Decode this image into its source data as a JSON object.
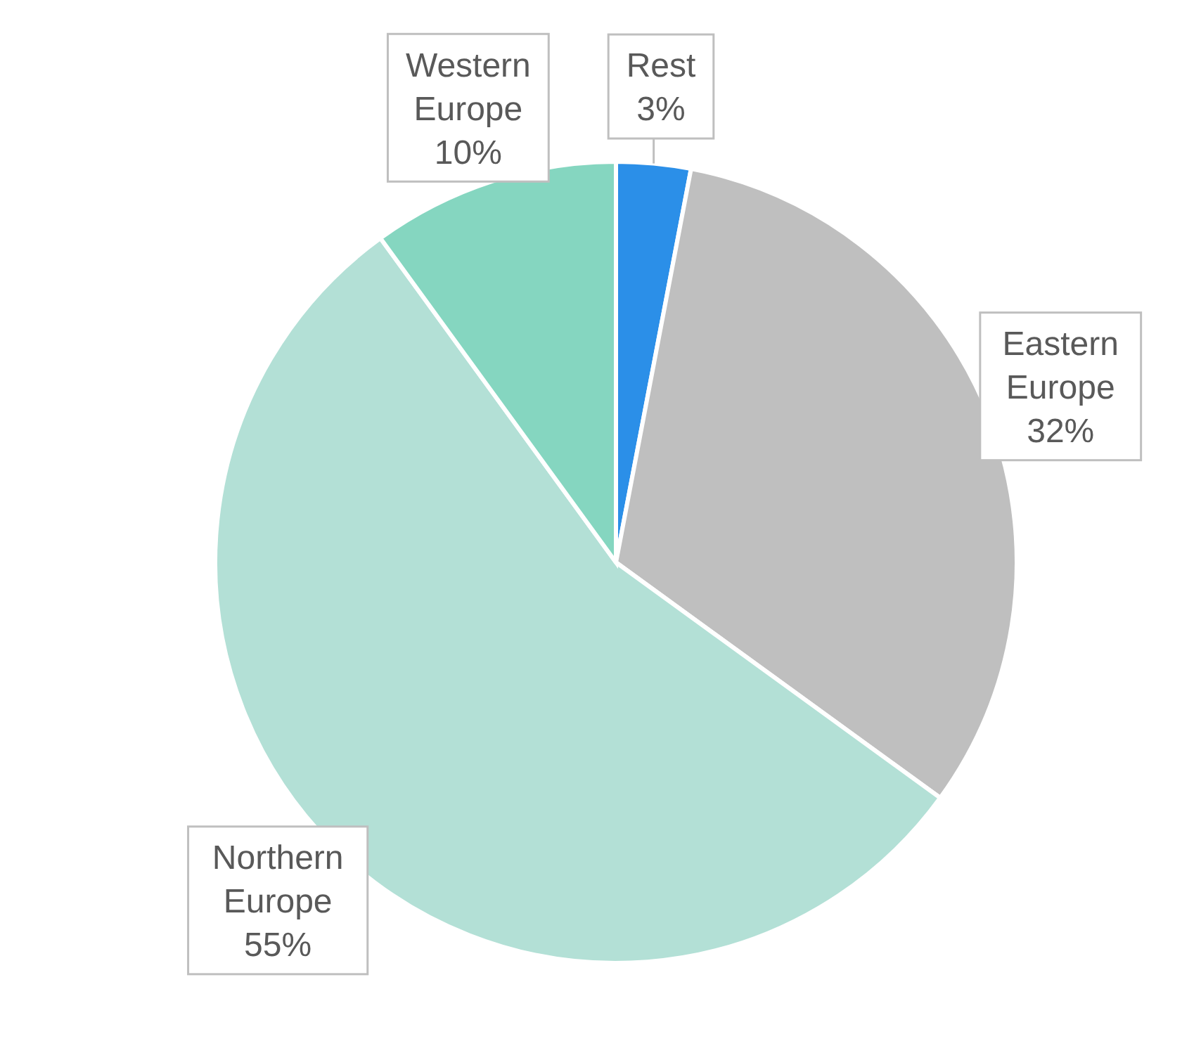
{
  "chart_data": {
    "type": "pie",
    "categories": [
      "Rest",
      "Eastern Europe",
      "Northern Europe",
      "Western Europe"
    ],
    "values": [
      3,
      32,
      55,
      10
    ],
    "colors": [
      "#2b8fe8",
      "#bfbfbf",
      "#b3e0d6",
      "#85d6c0"
    ],
    "value_labels": [
      "3%",
      "32%",
      "55%",
      "10%"
    ]
  }
}
